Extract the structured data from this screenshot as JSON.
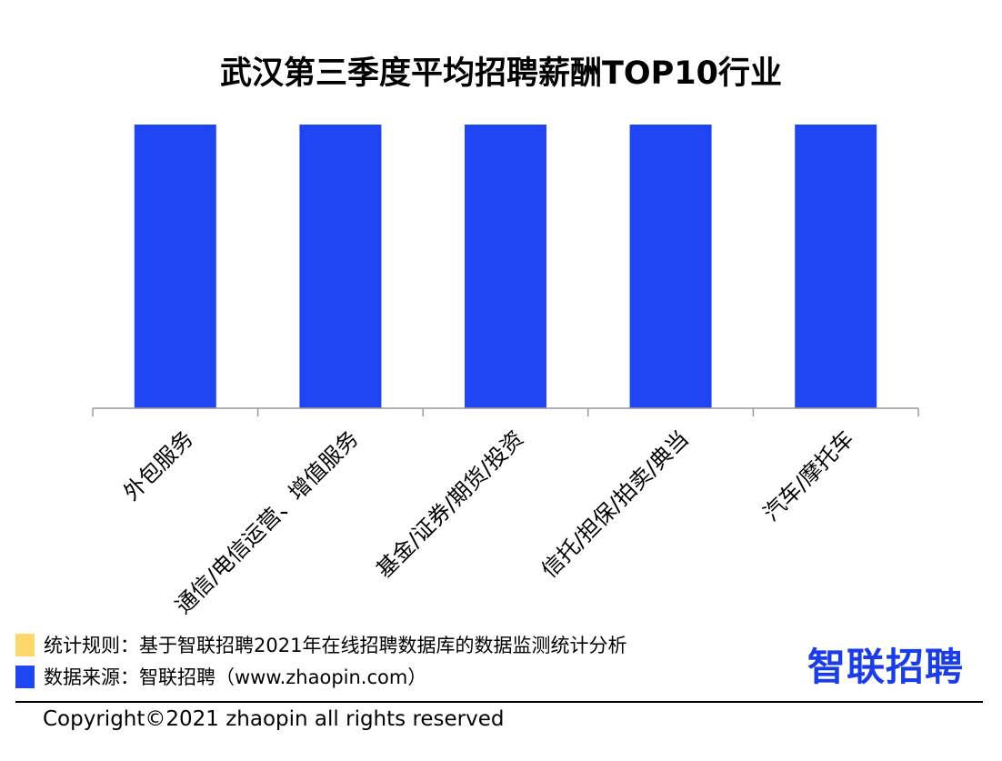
{
  "chart_data": {
    "type": "bar",
    "title": "武汉第三季度平均招聘薪酬TOP10行业",
    "categories": [
      "外包服务",
      "通信/电信运营、增值服务",
      "基金/证券/期货/投资",
      "信托/担保/拍卖/典当",
      "汽车/摩托车"
    ],
    "values": [
      1,
      1,
      1,
      1,
      1
    ],
    "ylim": [
      0,
      1
    ],
    "xlabel": "",
    "ylabel": "",
    "grid": false,
    "bar_color": "#1f46f2"
  },
  "footer": {
    "rule_text": "统计规则：基于智联招聘2021年在线招聘数据库的数据监测统计分析",
    "source_text": "数据来源：智联招聘（www.zhaopin.com）",
    "rule_swatch_color": "#fdd76a",
    "source_swatch_color": "#1f46f2"
  },
  "logo": {
    "text": "智联招聘",
    "color": "#1b3de8"
  },
  "copyright": "Copyright©2021 zhaopin all rights reserved"
}
